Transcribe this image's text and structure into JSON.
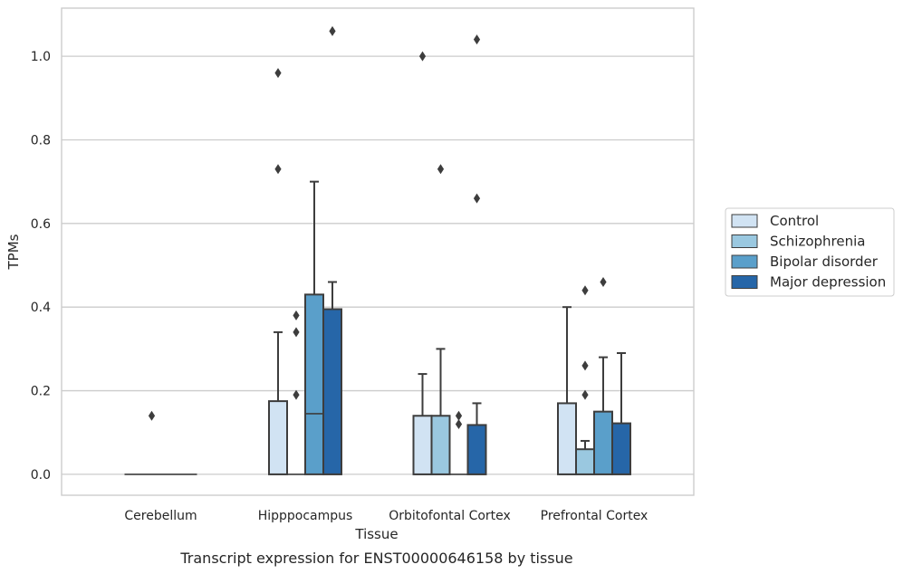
{
  "chart_data": {
    "type": "box",
    "caption": "Transcript expression for ENST00000646158 by tissue",
    "xlabel": "Tissue",
    "ylabel": "TPMs",
    "ylim": [
      -0.05,
      1.115
    ],
    "yticks": [
      0.0,
      0.2,
      0.4,
      0.6,
      0.8,
      1.0
    ],
    "ytick_labels": [
      "0.0",
      "0.2",
      "0.4",
      "0.6",
      "0.8",
      "1.0"
    ],
    "grid": true,
    "legend_position": "right",
    "categories": [
      "Cerebellum",
      "Hipppocampus",
      "Orbitofontal Cortex",
      "Prefrontal Cortex"
    ],
    "series": [
      {
        "name": "Control",
        "color": "#d1e3f3",
        "boxes": [
          {
            "q1": 0.0,
            "median": 0.0,
            "q3": 0.0,
            "whisker_low": 0.0,
            "whisker_high": 0.0,
            "outliers": []
          },
          {
            "q1": 0.0,
            "median": 0.0,
            "q3": 0.175,
            "whisker_low": 0.0,
            "whisker_high": 0.34,
            "outliers": [
              0.73,
              0.96
            ]
          },
          {
            "q1": 0.0,
            "median": 0.0,
            "q3": 0.14,
            "whisker_low": 0.0,
            "whisker_high": 0.24,
            "outliers": [
              1.0
            ]
          },
          {
            "q1": 0.0,
            "median": 0.0,
            "q3": 0.17,
            "whisker_low": 0.0,
            "whisker_high": 0.4,
            "outliers": []
          }
        ]
      },
      {
        "name": "Schizophrenia",
        "color": "#9ac8e0",
        "boxes": [
          {
            "q1": 0.0,
            "median": 0.0,
            "q3": 0.0,
            "whisker_low": 0.0,
            "whisker_high": 0.0,
            "outliers": [
              0.14
            ]
          },
          {
            "q1": 0.0,
            "median": 0.0,
            "q3": 0.0,
            "whisker_low": 0.0,
            "whisker_high": 0.0,
            "outliers": [
              0.19,
              0.34,
              0.38
            ]
          },
          {
            "q1": 0.0,
            "median": 0.0,
            "q3": 0.14,
            "whisker_low": 0.0,
            "whisker_high": 0.3,
            "outliers": [
              0.73
            ]
          },
          {
            "q1": 0.0,
            "median": 0.0,
            "q3": 0.06,
            "whisker_low": 0.0,
            "whisker_high": 0.08,
            "outliers": [
              0.19,
              0.26,
              0.44
            ]
          }
        ]
      },
      {
        "name": "Bipolar disorder",
        "color": "#5a9fca",
        "boxes": [
          {
            "q1": 0.0,
            "median": 0.0,
            "q3": 0.0,
            "whisker_low": 0.0,
            "whisker_high": 0.0,
            "outliers": []
          },
          {
            "q1": 0.0,
            "median": 0.145,
            "q3": 0.43,
            "whisker_low": 0.0,
            "whisker_high": 0.7,
            "outliers": []
          },
          {
            "q1": 0.0,
            "median": 0.0,
            "q3": 0.0,
            "whisker_low": 0.0,
            "whisker_high": 0.0,
            "outliers": [
              0.12,
              0.14
            ]
          },
          {
            "q1": 0.0,
            "median": 0.0,
            "q3": 0.15,
            "whisker_low": 0.0,
            "whisker_high": 0.28,
            "outliers": [
              0.46
            ]
          }
        ]
      },
      {
        "name": "Major depression",
        "color": "#2666a8",
        "boxes": [
          {
            "q1": 0.0,
            "median": 0.0,
            "q3": 0.0,
            "whisker_low": 0.0,
            "whisker_high": 0.0,
            "outliers": []
          },
          {
            "q1": 0.0,
            "median": 0.0,
            "q3": 0.395,
            "whisker_low": 0.0,
            "whisker_high": 0.46,
            "outliers": [
              1.06
            ]
          },
          {
            "q1": 0.0,
            "median": 0.0,
            "q3": 0.118,
            "whisker_low": 0.0,
            "whisker_high": 0.17,
            "outliers": [
              0.66,
              1.04
            ]
          },
          {
            "q1": 0.0,
            "median": 0.0,
            "q3": 0.122,
            "whisker_low": 0.0,
            "whisker_high": 0.29,
            "outliers": []
          }
        ]
      }
    ]
  }
}
